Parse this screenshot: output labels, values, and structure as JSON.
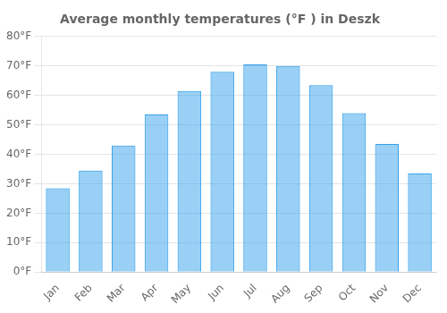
{
  "chart_data": {
    "type": "bar",
    "title": "Average monthly temperatures (°F ) in Deszk",
    "categories": [
      "Jan",
      "Feb",
      "Mar",
      "Apr",
      "May",
      "Jun",
      "Jul",
      "Aug",
      "Sep",
      "Oct",
      "Nov",
      "Dec"
    ],
    "values": [
      28.5,
      34.5,
      43,
      53.5,
      61.5,
      68,
      70.5,
      70,
      63.5,
      54,
      43.5,
      33.5
    ],
    "ylim": [
      0,
      80
    ],
    "yticks": [
      {
        "value": 0,
        "label": "0°F"
      },
      {
        "value": 10,
        "label": "10°F"
      },
      {
        "value": 20,
        "label": "20°F"
      },
      {
        "value": 30,
        "label": "30°F"
      },
      {
        "value": 40,
        "label": "40°F"
      },
      {
        "value": 50,
        "label": "50°F"
      },
      {
        "value": 60,
        "label": "60°F"
      },
      {
        "value": 70,
        "label": "70°F"
      },
      {
        "value": 80,
        "label": "80°F"
      }
    ],
    "grid": true
  }
}
